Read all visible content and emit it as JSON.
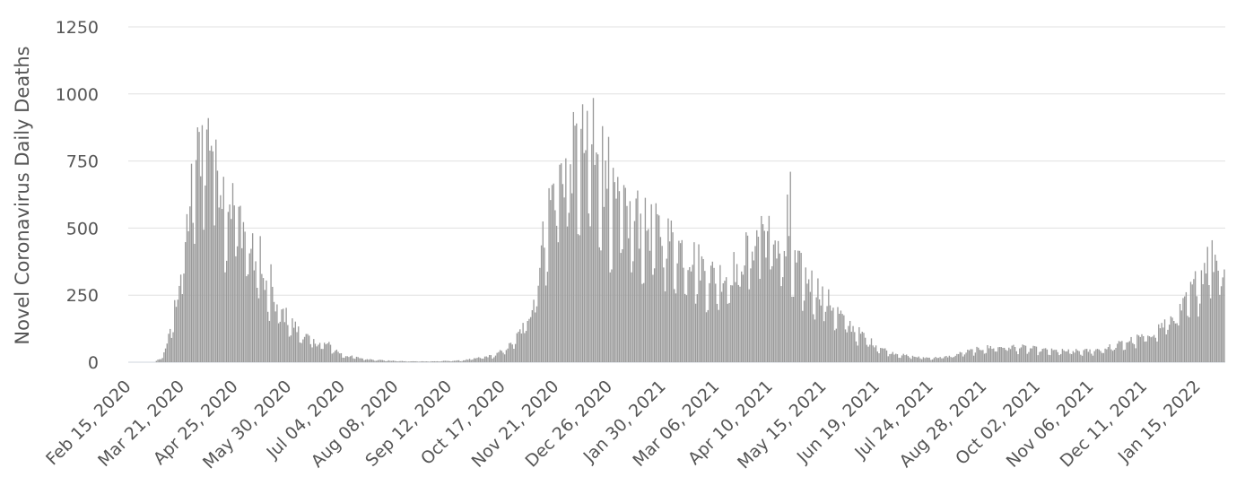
{
  "chart_data": {
    "type": "bar",
    "title": "",
    "xlabel": "",
    "ylabel": "Novel Coronavirus Daily Deaths",
    "ylim": [
      0,
      1250
    ],
    "yticks": [
      0,
      250,
      500,
      750,
      1000,
      1250
    ],
    "ytick_labels": [
      "0",
      "250",
      "500",
      "750",
      "1000",
      "1250"
    ],
    "x_start": "2020-02-15",
    "x_end": "2022-02-01",
    "xtick_dates": [
      "2020-02-15",
      "2020-03-21",
      "2020-04-25",
      "2020-05-30",
      "2020-07-04",
      "2020-08-08",
      "2020-09-12",
      "2020-10-17",
      "2020-11-21",
      "2020-12-26",
      "2021-01-30",
      "2021-03-06",
      "2021-04-10",
      "2021-05-15",
      "2021-06-19",
      "2021-07-24",
      "2021-08-28",
      "2021-10-02",
      "2021-11-06",
      "2021-12-11",
      "2022-01-15"
    ],
    "xtick_labels": [
      "Feb 15, 2020",
      "Mar 21, 2020",
      "Apr 25, 2020",
      "May 30, 2020",
      "Jul 04, 2020",
      "Aug 08, 2020",
      "Sep 12, 2020",
      "Oct 17, 2020",
      "Nov 21, 2020",
      "Dec 26, 2020",
      "Jan 30, 2021",
      "Mar 06, 2021",
      "Apr 10, 2021",
      "May 15, 2021",
      "Jun 19, 2021",
      "Jul 24, 2021",
      "Aug 28, 2021",
      "Oct 02, 2021",
      "Nov 06, 2021",
      "Dec 11, 2021",
      "Jan 15, 2022"
    ],
    "grid": true,
    "legend": "none",
    "bar_color": "#9a9a9a",
    "profile": [
      {
        "date": "2020-02-15",
        "value": 0
      },
      {
        "date": "2020-03-03",
        "value": 0
      },
      {
        "date": "2020-03-08",
        "value": 20
      },
      {
        "date": "2020-03-13",
        "value": 100
      },
      {
        "date": "2020-03-18",
        "value": 250
      },
      {
        "date": "2020-03-23",
        "value": 420
      },
      {
        "date": "2020-03-28",
        "value": 640
      },
      {
        "date": "2020-04-02",
        "value": 760
      },
      {
        "date": "2020-04-05",
        "value": 850
      },
      {
        "date": "2020-04-08",
        "value": 810
      },
      {
        "date": "2020-04-13",
        "value": 680
      },
      {
        "date": "2020-04-18",
        "value": 580
      },
      {
        "date": "2020-04-25",
        "value": 540
      },
      {
        "date": "2020-05-01",
        "value": 460
      },
      {
        "date": "2020-05-07",
        "value": 360
      },
      {
        "date": "2020-05-14",
        "value": 260
      },
      {
        "date": "2020-05-21",
        "value": 200
      },
      {
        "date": "2020-05-28",
        "value": 160
      },
      {
        "date": "2020-06-05",
        "value": 110
      },
      {
        "date": "2020-06-15",
        "value": 70
      },
      {
        "date": "2020-06-25",
        "value": 60
      },
      {
        "date": "2020-07-04",
        "value": 25
      },
      {
        "date": "2020-07-18",
        "value": 12
      },
      {
        "date": "2020-08-01",
        "value": 6
      },
      {
        "date": "2020-08-15",
        "value": 3
      },
      {
        "date": "2020-09-01",
        "value": 3
      },
      {
        "date": "2020-09-20",
        "value": 6
      },
      {
        "date": "2020-10-01",
        "value": 15
      },
      {
        "date": "2020-10-12",
        "value": 25
      },
      {
        "date": "2020-10-22",
        "value": 60
      },
      {
        "date": "2020-10-30",
        "value": 120
      },
      {
        "date": "2020-11-05",
        "value": 200
      },
      {
        "date": "2020-11-10",
        "value": 350
      },
      {
        "date": "2020-11-15",
        "value": 520
      },
      {
        "date": "2020-11-20",
        "value": 620
      },
      {
        "date": "2020-11-27",
        "value": 680
      },
      {
        "date": "2020-12-03",
        "value": 730
      },
      {
        "date": "2020-12-08",
        "value": 760
      },
      {
        "date": "2020-12-14",
        "value": 700
      },
      {
        "date": "2020-12-20",
        "value": 640
      },
      {
        "date": "2020-12-26",
        "value": 580
      },
      {
        "date": "2021-01-02",
        "value": 520
      },
      {
        "date": "2021-01-10",
        "value": 490
      },
      {
        "date": "2021-01-20",
        "value": 470
      },
      {
        "date": "2021-01-30",
        "value": 450
      },
      {
        "date": "2021-02-10",
        "value": 400
      },
      {
        "date": "2021-02-20",
        "value": 360
      },
      {
        "date": "2021-03-01",
        "value": 310
      },
      {
        "date": "2021-03-10",
        "value": 300
      },
      {
        "date": "2021-03-20",
        "value": 340
      },
      {
        "date": "2021-03-28",
        "value": 410
      },
      {
        "date": "2021-04-05",
        "value": 450
      },
      {
        "date": "2021-04-12",
        "value": 430
      },
      {
        "date": "2021-04-20",
        "value": 380
      },
      {
        "date": "2021-04-28",
        "value": 330
      },
      {
        "date": "2021-05-05",
        "value": 290
      },
      {
        "date": "2021-05-12",
        "value": 250
      },
      {
        "date": "2021-05-20",
        "value": 200
      },
      {
        "date": "2021-05-28",
        "value": 150
      },
      {
        "date": "2021-06-05",
        "value": 110
      },
      {
        "date": "2021-06-15",
        "value": 70
      },
      {
        "date": "2021-06-25",
        "value": 40
      },
      {
        "date": "2021-07-05",
        "value": 25
      },
      {
        "date": "2021-07-15",
        "value": 18
      },
      {
        "date": "2021-07-24",
        "value": 15
      },
      {
        "date": "2021-08-05",
        "value": 20
      },
      {
        "date": "2021-08-15",
        "value": 35
      },
      {
        "date": "2021-08-28",
        "value": 50
      },
      {
        "date": "2021-09-10",
        "value": 55
      },
      {
        "date": "2021-09-25",
        "value": 50
      },
      {
        "date": "2021-10-10",
        "value": 40
      },
      {
        "date": "2021-10-25",
        "value": 38
      },
      {
        "date": "2021-11-06",
        "value": 40
      },
      {
        "date": "2021-11-20",
        "value": 55
      },
      {
        "date": "2021-12-01",
        "value": 75
      },
      {
        "date": "2021-12-11",
        "value": 90
      },
      {
        "date": "2021-12-20",
        "value": 120
      },
      {
        "date": "2021-12-28",
        "value": 150
      },
      {
        "date": "2022-01-05",
        "value": 190
      },
      {
        "date": "2022-01-12",
        "value": 260
      },
      {
        "date": "2022-01-18",
        "value": 330
      },
      {
        "date": "2022-01-24",
        "value": 370
      },
      {
        "date": "2022-02-01",
        "value": 360
      }
    ],
    "spikes": [
      {
        "date": "2020-04-07",
        "value": 910
      },
      {
        "date": "2020-04-12",
        "value": 830
      },
      {
        "date": "2020-05-11",
        "value": 470
      },
      {
        "date": "2020-05-18",
        "value": 365
      },
      {
        "date": "2020-12-15",
        "value": 985
      },
      {
        "date": "2020-12-21",
        "value": 880
      },
      {
        "date": "2020-12-25",
        "value": 840
      },
      {
        "date": "2021-01-05",
        "value": 650
      },
      {
        "date": "2021-01-13",
        "value": 640
      },
      {
        "date": "2021-04-04",
        "value": 545
      },
      {
        "date": "2021-04-21",
        "value": 625
      },
      {
        "date": "2021-04-23",
        "value": 710
      },
      {
        "date": "2022-01-21",
        "value": 430
      }
    ]
  }
}
